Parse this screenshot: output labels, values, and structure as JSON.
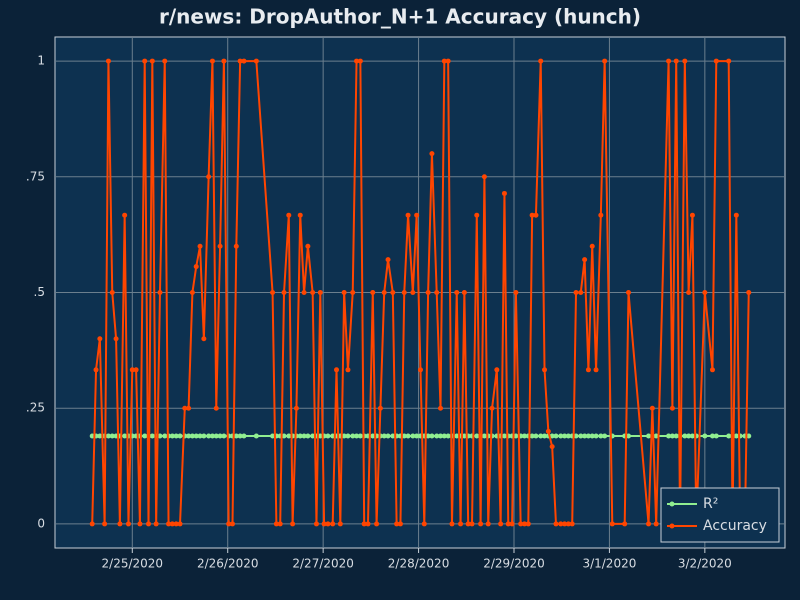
{
  "chart_data": {
    "type": "line",
    "title": "r/news: DropAuthor_N+1 Accuracy (hunch)",
    "x": [
      24.58,
      24.62,
      24.66,
      24.71,
      24.75,
      24.79,
      24.83,
      24.87,
      24.92,
      24.96,
      25.0,
      25.04,
      25.08,
      25.13,
      25.17,
      25.21,
      25.25,
      25.29,
      25.34,
      25.38,
      25.42,
      25.46,
      25.5,
      25.55,
      25.59,
      25.63,
      25.67,
      25.71,
      25.75,
      25.8,
      25.84,
      25.88,
      25.92,
      25.96,
      26.01,
      26.05,
      26.09,
      26.13,
      26.17,
      26.3,
      26.47,
      26.51,
      26.55,
      26.59,
      26.64,
      26.68,
      26.72,
      26.76,
      26.8,
      26.84,
      26.89,
      26.93,
      26.97,
      27.01,
      27.05,
      27.1,
      27.14,
      27.18,
      27.22,
      27.26,
      27.31,
      27.35,
      27.39,
      27.43,
      27.47,
      27.52,
      27.56,
      27.6,
      27.64,
      27.68,
      27.73,
      27.77,
      27.81,
      27.85,
      27.89,
      27.94,
      27.98,
      28.02,
      28.06,
      28.1,
      28.14,
      28.19,
      28.23,
      28.27,
      28.31,
      28.35,
      28.4,
      28.44,
      28.48,
      28.52,
      28.56,
      28.61,
      28.65,
      28.69,
      28.73,
      28.77,
      28.82,
      28.86,
      28.9,
      28.94,
      28.98,
      29.02,
      29.07,
      29.11,
      29.15,
      29.19,
      29.23,
      29.28,
      29.32,
      29.36,
      29.4,
      29.44,
      29.49,
      29.53,
      29.57,
      29.61,
      29.65,
      29.7,
      29.74,
      29.78,
      29.82,
      29.86,
      29.91,
      29.95,
      30.03,
      30.16,
      30.2,
      30.41,
      30.45,
      30.49,
      30.62,
      30.66,
      30.7,
      30.74,
      30.79,
      30.83,
      30.87,
      30.91,
      31.0,
      31.08,
      31.12,
      31.25,
      31.29,
      31.33,
      31.37,
      31.42,
      31.46
    ],
    "series": [
      {
        "name": "R²",
        "color": "#90ee90",
        "values": [
          0.19,
          0.19,
          0.19,
          0.19,
          0.19,
          0.19,
          0.19,
          0.19,
          0.19,
          0.19,
          0.19,
          0.19,
          0.19,
          0.19,
          0.19,
          0.19,
          0.19,
          0.19,
          0.19,
          0.19,
          0.19,
          0.19,
          0.19,
          0.19,
          0.19,
          0.19,
          0.19,
          0.19,
          0.19,
          0.19,
          0.19,
          0.19,
          0.19,
          0.19,
          0.19,
          0.19,
          0.19,
          0.19,
          0.19,
          0.19,
          0.19,
          0.19,
          0.19,
          0.19,
          0.19,
          0.19,
          0.19,
          0.19,
          0.19,
          0.19,
          0.19,
          0.19,
          0.19,
          0.19,
          0.19,
          0.19,
          0.19,
          0.19,
          0.19,
          0.19,
          0.19,
          0.19,
          0.19,
          0.19,
          0.19,
          0.19,
          0.19,
          0.19,
          0.19,
          0.19,
          0.19,
          0.19,
          0.19,
          0.19,
          0.19,
          0.19,
          0.19,
          0.19,
          0.19,
          0.19,
          0.19,
          0.19,
          0.19,
          0.19,
          0.19,
          0.19,
          0.19,
          0.19,
          0.19,
          0.19,
          0.19,
          0.19,
          0.19,
          0.19,
          0.19,
          0.19,
          0.19,
          0.19,
          0.19,
          0.19,
          0.19,
          0.19,
          0.19,
          0.19,
          0.19,
          0.19,
          0.19,
          0.19,
          0.19,
          0.19,
          0.19,
          0.19,
          0.19,
          0.19,
          0.19,
          0.19,
          0.19,
          0.19,
          0.19,
          0.19,
          0.19,
          0.19,
          0.19,
          0.19,
          0.19,
          0.19,
          0.19,
          0.19,
          0.19,
          0.19,
          0.19,
          0.19,
          0.19,
          0.19,
          0.19,
          0.19,
          0.19,
          0.19,
          0.19,
          0.19,
          0.19,
          0.19,
          0.19,
          0.19,
          0.19,
          0.19,
          0.19
        ]
      },
      {
        "name": "Accuracy",
        "color": "#ff4500",
        "values": [
          0,
          0.333,
          0.4,
          0,
          1,
          0.5,
          0.4,
          0,
          0.667,
          0,
          0.333,
          0.333,
          0,
          1,
          0,
          1,
          0,
          0.5,
          1,
          0,
          0,
          0,
          0,
          0.25,
          0.25,
          0.5,
          0.556,
          0.6,
          0.4,
          0.75,
          1,
          0.25,
          0.6,
          1,
          0,
          0,
          0.6,
          1,
          1,
          1,
          0.5,
          0,
          0,
          0.5,
          0.667,
          0,
          0.25,
          0.667,
          0.5,
          0.6,
          0.5,
          0,
          0.5,
          0,
          0,
          0,
          0.333,
          0,
          0.5,
          0.333,
          0.5,
          1,
          1,
          0,
          0,
          0.5,
          0,
          0.25,
          0.5,
          0.571,
          0.5,
          0,
          0,
          0.5,
          0.667,
          0.5,
          0.667,
          0.333,
          0,
          0.5,
          0.8,
          0.5,
          0.25,
          1,
          1,
          0,
          0.5,
          0,
          0.5,
          0,
          0,
          0.667,
          0,
          0.75,
          0,
          0.25,
          0.333,
          0,
          0.714,
          0,
          0,
          0.5,
          0,
          0,
          0,
          0.667,
          0.667,
          1,
          0.333,
          0.2,
          0.167,
          0,
          0,
          0,
          0,
          0,
          0.5,
          0.5,
          0.571,
          0.333,
          0.6,
          0.333,
          0.667,
          1,
          0,
          0,
          0.5,
          0,
          0.25,
          0,
          1,
          0.25,
          1,
          0,
          1,
          0.5,
          0.667,
          0,
          0.5,
          0.333,
          1,
          1,
          0,
          0.667,
          0,
          0,
          0.5
        ]
      }
    ],
    "xlim": [
      24.19,
      31.84
    ],
    "xticks": [
      {
        "value": 25,
        "label": "2/25/2020"
      },
      {
        "value": 26,
        "label": "2/26/2020"
      },
      {
        "value": 27,
        "label": "2/27/2020"
      },
      {
        "value": 28,
        "label": "2/28/2020"
      },
      {
        "value": 29,
        "label": "2/29/2020"
      },
      {
        "value": 30,
        "label": "3/1/2020"
      },
      {
        "value": 31,
        "label": "3/2/2020"
      }
    ],
    "ylim": [
      -0.052,
      1.052
    ],
    "yticks": [
      0,
      {
        "value": 0.25,
        "label": ".25"
      },
      {
        "value": 0.5,
        "label": ".5"
      },
      {
        "value": 0.75,
        "label": ".75"
      },
      1
    ],
    "grid": true,
    "legend": "lower right"
  }
}
